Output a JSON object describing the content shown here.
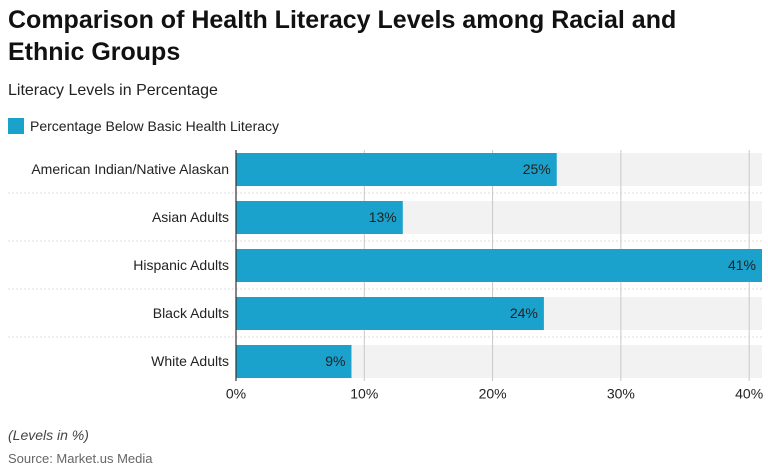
{
  "chart_data": {
    "type": "bar",
    "orientation": "horizontal",
    "title": "Comparison of Health Literacy Levels among Racial and Ethnic Groups",
    "subtitle": "Literacy Levels in Percentage",
    "categories": [
      "American Indian/Native Alaskan",
      "Asian Adults",
      "Hispanic Adults",
      "Black Adults",
      "White Adults"
    ],
    "series": [
      {
        "name": "Percentage Below Basic Health Literacy",
        "color": "#1aa1cc",
        "values": [
          25,
          13,
          41,
          24,
          9
        ],
        "value_labels": [
          "25%",
          "13%",
          "41%",
          "24%",
          "9%"
        ]
      }
    ],
    "xlim": [
      0,
      41
    ],
    "xticks": [
      {
        "value": 0,
        "label": "0%"
      },
      {
        "value": 10,
        "label": "10%"
      },
      {
        "value": 20,
        "label": "20%"
      },
      {
        "value": 30,
        "label": "30%"
      },
      {
        "value": 40,
        "label": "40%"
      }
    ],
    "grid": true,
    "note": "(Levels in %)",
    "source": "Source: Market.us Media"
  }
}
